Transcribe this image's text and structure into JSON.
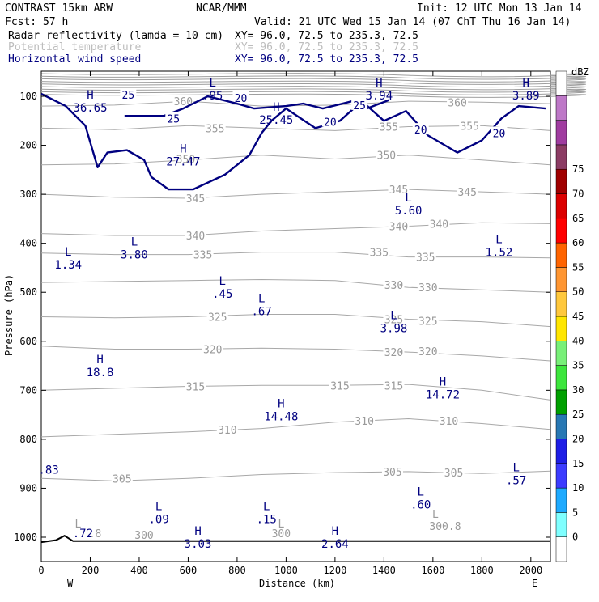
{
  "header": {
    "line1_left": "CONTRAST 15km ARW",
    "line1_center": "NCAR/MMM",
    "line1_right": "Init: 12 UTC Mon 13 Jan 14",
    "line2_left": "Fcst:    57 h",
    "line2_right": "Valid: 21 UTC Wed 15 Jan 14 (07 ChT Thu 16 Jan 14)",
    "fields": [
      {
        "name": "Radar reflectivity (lamda = 10 cm)",
        "xy": "XY=   96.0, 72.5 to 235.3, 72.5",
        "color": "#000000"
      },
      {
        "name": "Potential temperature",
        "xy": "XY=   96.0, 72.5 to 235.3, 72.5",
        "color": "#bdbdbd"
      },
      {
        "name": "Horizontal wind speed",
        "xy": "XY=   96.0, 72.5 to 235.3, 72.5",
        "color": "#000080"
      }
    ]
  },
  "colorbar": {
    "unit": "dBZ",
    "levels": [
      "0",
      "5",
      "10",
      "15",
      "20",
      "25",
      "30",
      "35",
      "40",
      "45",
      "50",
      "55",
      "60",
      "65",
      "70",
      "75"
    ],
    "colors": [
      "#ffffff",
      "#7fffff",
      "#1eaaff",
      "#3c3cff",
      "#1e1ee6",
      "#2878b4",
      "#00a000",
      "#3ce63c",
      "#78f078",
      "#ffe600",
      "#ffc83c",
      "#ff9632",
      "#ff6400",
      "#ff0000",
      "#dc0000",
      "#a00000",
      "#8c3c64",
      "#a03ca0",
      "#be78c8",
      "#ffffff"
    ]
  },
  "chart_data": {
    "type": "cross-section contour",
    "xlabel": "Distance (km)",
    "ylabel": "Pressure (hPa)",
    "xlim": [
      0,
      2080
    ],
    "ylim": [
      1050,
      50
    ],
    "x_ticks": [
      "0",
      "200",
      "400",
      "600",
      "800",
      "1000",
      "1200",
      "1400",
      "1600",
      "1800",
      "2000"
    ],
    "x_tick_values": [
      0,
      200,
      400,
      600,
      800,
      1000,
      1200,
      1400,
      1600,
      1800,
      2000
    ],
    "y_ticks": [
      "100",
      "200",
      "300",
      "400",
      "500",
      "600",
      "700",
      "800",
      "900",
      "1000"
    ],
    "y_tick_values": [
      100,
      200,
      300,
      400,
      500,
      600,
      700,
      800,
      900,
      1000
    ],
    "x_end_labels": {
      "left": "W",
      "right": "E"
    },
    "theta_contours": [
      {
        "value": "305",
        "points": [
          [
            0,
            880
          ],
          [
            300,
            885
          ],
          [
            600,
            880
          ],
          [
            900,
            872
          ],
          [
            1200,
            868
          ],
          [
            1500,
            866
          ],
          [
            1800,
            870
          ],
          [
            2080,
            865
          ]
        ],
        "labels": [
          [
            330,
            880
          ],
          [
            1435,
            866
          ],
          [
            1685,
            868
          ]
        ]
      },
      {
        "value": "310",
        "points": [
          [
            0,
            795
          ],
          [
            300,
            790
          ],
          [
            600,
            785
          ],
          [
            900,
            778
          ],
          [
            1200,
            765
          ],
          [
            1500,
            758
          ],
          [
            1800,
            768
          ],
          [
            2080,
            780
          ]
        ],
        "labels": [
          [
            760,
            780
          ],
          [
            1320,
            762
          ],
          [
            1665,
            762
          ]
        ]
      },
      {
        "value": "315",
        "points": [
          [
            0,
            700
          ],
          [
            300,
            696
          ],
          [
            600,
            692
          ],
          [
            900,
            690
          ],
          [
            1200,
            690
          ],
          [
            1500,
            688
          ],
          [
            1800,
            700
          ],
          [
            2080,
            720
          ]
        ],
        "labels": [
          [
            630,
            692
          ],
          [
            1220,
            690
          ],
          [
            1440,
            690
          ]
        ]
      },
      {
        "value": "320",
        "points": [
          [
            0,
            610
          ],
          [
            300,
            616
          ],
          [
            600,
            616
          ],
          [
            900,
            614
          ],
          [
            1200,
            616
          ],
          [
            1500,
            622
          ],
          [
            1800,
            630
          ],
          [
            2080,
            640
          ]
        ],
        "labels": [
          [
            700,
            616
          ],
          [
            1440,
            622
          ],
          [
            1580,
            620
          ]
        ]
      },
      {
        "value": "325",
        "points": [
          [
            0,
            550
          ],
          [
            300,
            552
          ],
          [
            600,
            550
          ],
          [
            900,
            545
          ],
          [
            1200,
            545
          ],
          [
            1500,
            555
          ],
          [
            1800,
            560
          ],
          [
            2080,
            570
          ]
        ],
        "labels": [
          [
            720,
            550
          ],
          [
            1440,
            555
          ],
          [
            1580,
            558
          ]
        ]
      },
      {
        "value": "330",
        "points": [
          [
            0,
            480
          ],
          [
            300,
            478
          ],
          [
            600,
            476
          ],
          [
            900,
            474
          ],
          [
            1200,
            476
          ],
          [
            1500,
            490
          ],
          [
            1800,
            495
          ],
          [
            2080,
            500
          ]
        ],
        "labels": [
          [
            1440,
            485
          ],
          [
            1580,
            490
          ]
        ]
      },
      {
        "value": "335",
        "points": [
          [
            0,
            420
          ],
          [
            300,
            423
          ],
          [
            600,
            423
          ],
          [
            900,
            418
          ],
          [
            1200,
            418
          ],
          [
            1500,
            428
          ],
          [
            1800,
            428
          ],
          [
            2080,
            430
          ]
        ],
        "labels": [
          [
            660,
            423
          ],
          [
            1380,
            418
          ],
          [
            1570,
            428
          ]
        ]
      },
      {
        "value": "340",
        "points": [
          [
            0,
            380
          ],
          [
            300,
            384
          ],
          [
            600,
            384
          ],
          [
            900,
            375
          ],
          [
            1200,
            370
          ],
          [
            1500,
            365
          ],
          [
            1800,
            358
          ],
          [
            2080,
            360
          ]
        ],
        "labels": [
          [
            630,
            384
          ],
          [
            1460,
            365
          ],
          [
            1625,
            360
          ]
        ]
      },
      {
        "value": "345",
        "points": [
          [
            0,
            300
          ],
          [
            300,
            306
          ],
          [
            600,
            308
          ],
          [
            900,
            300
          ],
          [
            1200,
            295
          ],
          [
            1500,
            290
          ],
          [
            1800,
            295
          ],
          [
            2080,
            300
          ]
        ],
        "labels": [
          [
            630,
            308
          ],
          [
            1460,
            290
          ],
          [
            1740,
            295
          ]
        ]
      },
      {
        "value": "350",
        "points": [
          [
            0,
            240
          ],
          [
            300,
            238
          ],
          [
            600,
            230
          ],
          [
            900,
            220
          ],
          [
            1200,
            228
          ],
          [
            1500,
            220
          ],
          [
            1800,
            230
          ],
          [
            2080,
            240
          ]
        ],
        "labels": [
          [
            590,
            228
          ],
          [
            1410,
            220
          ]
        ]
      },
      {
        "value": "355",
        "points": [
          [
            0,
            165
          ],
          [
            300,
            168
          ],
          [
            600,
            160
          ],
          [
            900,
            165
          ],
          [
            1200,
            170
          ],
          [
            1500,
            162
          ],
          [
            1800,
            160
          ],
          [
            2080,
            170
          ]
        ],
        "labels": [
          [
            710,
            165
          ],
          [
            1420,
            162
          ],
          [
            1750,
            160
          ]
        ]
      },
      {
        "value": "360",
        "points": [
          [
            0,
            120
          ],
          [
            300,
            118
          ],
          [
            600,
            110
          ],
          [
            900,
            120
          ],
          [
            1200,
            118
          ],
          [
            1500,
            110
          ],
          [
            1800,
            112
          ],
          [
            2080,
            115
          ]
        ],
        "labels": [
          [
            580,
            110
          ],
          [
            1700,
            112
          ]
        ]
      }
    ],
    "wind_contours": [
      {
        "value": "20",
        "points": [
          [
            0,
            95
          ],
          [
            100,
            120
          ],
          [
            180,
            160
          ],
          [
            230,
            245
          ],
          [
            270,
            215
          ],
          [
            350,
            210
          ],
          [
            420,
            230
          ],
          [
            450,
            265
          ],
          [
            520,
            290
          ],
          [
            620,
            290
          ],
          [
            750,
            260
          ],
          [
            850,
            220
          ],
          [
            900,
            175
          ],
          [
            940,
            150
          ],
          [
            1000,
            125
          ],
          [
            1060,
            145
          ],
          [
            1120,
            165
          ],
          [
            1220,
            150
          ],
          [
            1310,
            110
          ],
          [
            1400,
            150
          ],
          [
            1490,
            130
          ],
          [
            1580,
            180
          ],
          [
            1700,
            215
          ],
          [
            1800,
            190
          ],
          [
            1880,
            145
          ],
          [
            1950,
            120
          ],
          [
            2060,
            125
          ]
        ],
        "labels": [
          [
            815,
            103
          ],
          [
            1180,
            152
          ],
          [
            1550,
            168
          ],
          [
            1870,
            175
          ]
        ]
      },
      {
        "value": "25",
        "points": [
          [
            340,
            140
          ],
          [
            500,
            140
          ],
          [
            580,
            125
          ],
          [
            680,
            100
          ],
          [
            800,
            115
          ],
          [
            870,
            125
          ],
          [
            1000,
            120
          ],
          [
            1070,
            115
          ],
          [
            1150,
            125
          ],
          [
            1270,
            110
          ],
          [
            1330,
            125
          ],
          [
            1420,
            108
          ]
        ],
        "labels": [
          [
            540,
            145
          ],
          [
            1300,
            118
          ],
          [
            355,
            97
          ]
        ]
      }
    ],
    "highs_lows": [
      {
        "type": "H",
        "value": "36.65",
        "x": 200,
        "p": 110
      },
      {
        "type": "L",
        "value": ".95",
        "x": 700,
        "p": 85
      },
      {
        "type": "H",
        "value": "25.45",
        "x": 960,
        "p": 135
      },
      {
        "type": "H",
        "value": "3.94",
        "x": 1380,
        "p": 85
      },
      {
        "type": "H",
        "value": "3.89",
        "x": 1980,
        "p": 85
      },
      {
        "type": "H",
        "value": "27.47",
        "x": 580,
        "p": 220
      },
      {
        "type": "L",
        "value": "5.60",
        "x": 1500,
        "p": 320
      },
      {
        "type": "L",
        "value": "1.34",
        "x": 110,
        "p": 430
      },
      {
        "type": "L",
        "value": "3.80",
        "x": 380,
        "p": 410
      },
      {
        "type": "L",
        "value": "1.52",
        "x": 1870,
        "p": 405
      },
      {
        "type": "L",
        "value": ".45",
        "x": 740,
        "p": 490
      },
      {
        "type": "L",
        "value": ".67",
        "x": 900,
        "p": 525
      },
      {
        "type": "L",
        "value": "3.98",
        "x": 1440,
        "p": 560
      },
      {
        "type": "H",
        "value": "18.8",
        "x": 240,
        "p": 650
      },
      {
        "type": "H",
        "value": "14.72",
        "x": 1640,
        "p": 695
      },
      {
        "type": "H",
        "value": "14.48",
        "x": 980,
        "p": 740
      },
      {
        "type": "L",
        "value": ".57",
        "x": 1940,
        "p": 870
      },
      {
        "type": "L",
        "value": ".60",
        "x": 1550,
        "p": 920
      },
      {
        "type": "L",
        "value": ".09",
        "x": 480,
        "p": 950
      },
      {
        "type": "L",
        "value": ".15",
        "x": 920,
        "p": 950
      },
      {
        "type": "H",
        "value": "3.03",
        "x": 640,
        "p": 1000
      },
      {
        "type": "H",
        "value": "2.64",
        "x": 1200,
        "p": 1000
      }
    ],
    "edge_annotations": [
      {
        "text": ".83",
        "x": 30,
        "p": 870,
        "color": "navy"
      },
      {
        "text": ".72",
        "x": 170,
        "p": 1000,
        "color": "navy"
      },
      {
        "text": "L",
        "x": 150,
        "p": 980,
        "color": "faint"
      },
      {
        "text": ".8",
        "x": 220,
        "p": 1000,
        "color": "faint"
      },
      {
        "text": "300",
        "x": 420,
        "p": 1003,
        "color": "faint"
      },
      {
        "text": "L",
        "x": 980,
        "p": 980,
        "color": "faint"
      },
      {
        "text": "300",
        "x": 980,
        "p": 1000,
        "color": "faint"
      },
      {
        "text": "L",
        "x": 1610,
        "p": 960,
        "color": "faint"
      },
      {
        "text": "300.8",
        "x": 1650,
        "p": 985,
        "color": "faint"
      }
    ],
    "terrain": [
      [
        0,
        1010
      ],
      [
        60,
        1006
      ],
      [
        95,
        997
      ],
      [
        130,
        1008
      ],
      [
        400,
        1008
      ],
      [
        2080,
        1008
      ]
    ]
  }
}
